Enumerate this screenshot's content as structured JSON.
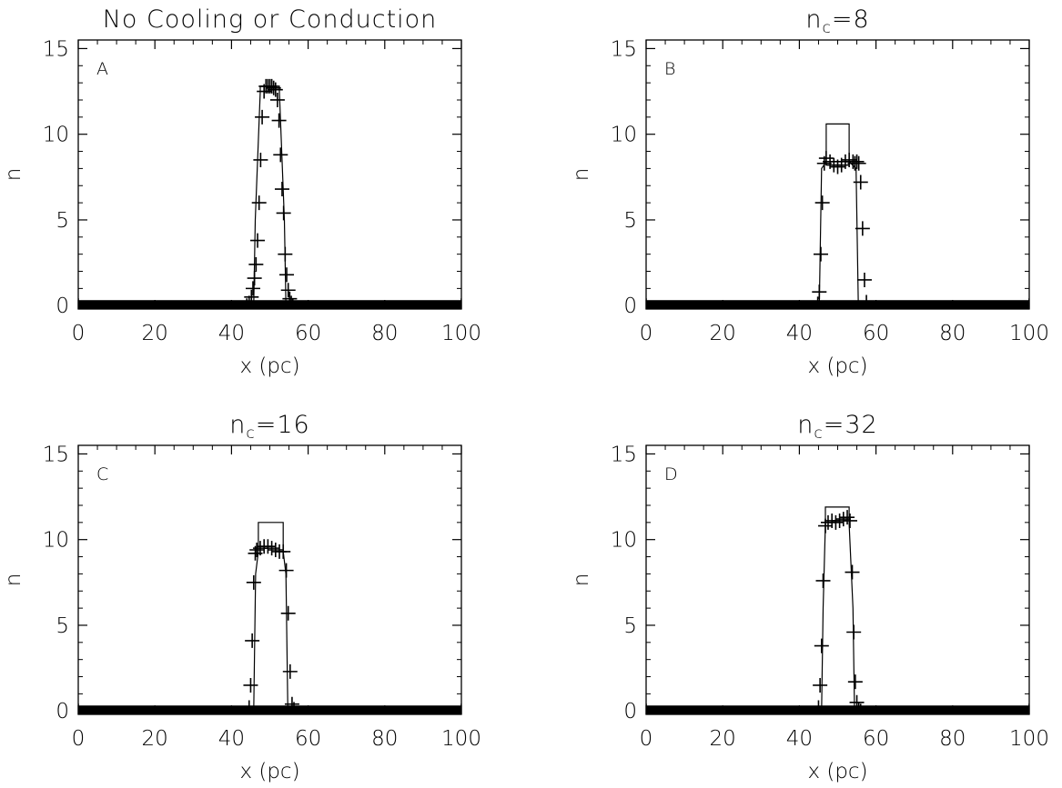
{
  "chart_data": [
    {
      "type": "line",
      "panel": "A",
      "title": "No Cooling or Conduction",
      "title_sub": "",
      "xlabel": "x (pc)",
      "ylabel": "n",
      "xlim": [
        0,
        100
      ],
      "ylim": [
        -0.2,
        15.5
      ],
      "xticks": [
        0,
        20,
        40,
        60,
        80,
        100
      ],
      "yticks": [
        0,
        5,
        10,
        15
      ],
      "grid": false,
      "series": [
        {
          "kind": "line",
          "x": [
            0,
            45.8,
            46.2,
            47.5,
            47.5,
            52.5,
            52.5,
            53.8,
            54.2,
            100
          ],
          "y": [
            0,
            0,
            5.0,
            12.5,
            12.8,
            12.8,
            12.5,
            5.0,
            0,
            0
          ]
        },
        {
          "kind": "markers",
          "x": [
            0,
            44,
            44.6,
            45.2,
            45.6,
            46.0,
            46.4,
            46.8,
            47.2,
            47.6,
            48.0,
            48.5,
            49.0,
            49.5,
            50.0,
            50.5,
            51.0,
            51.5,
            52.0,
            52.4,
            52.8,
            53.2,
            53.6,
            54.0,
            54.4,
            54.8,
            55.2,
            55.6,
            56.0,
            100
          ],
          "y": [
            0,
            0,
            0.15,
            0.5,
            1.0,
            1.6,
            2.4,
            3.8,
            6.0,
            8.5,
            11.0,
            12.5,
            12.8,
            12.8,
            12.8,
            12.8,
            12.7,
            12.6,
            12.0,
            10.8,
            8.8,
            6.8,
            5.4,
            3.0,
            1.8,
            0.9,
            0.4,
            0.15,
            0,
            0
          ]
        }
      ]
    },
    {
      "type": "line",
      "panel": "B",
      "title": "n",
      "title_sub": "c",
      "title_tail": "=8",
      "xlabel": "x (pc)",
      "ylabel": "n",
      "xlim": [
        0,
        100
      ],
      "ylim": [
        -0.2,
        15.5
      ],
      "xticks": [
        0,
        20,
        40,
        60,
        80,
        100
      ],
      "yticks": [
        0,
        5,
        10,
        15
      ],
      "grid": false,
      "series": [
        {
          "kind": "line",
          "x": [
            0,
            45.2,
            45.8,
            47.0,
            47.0,
            53.0,
            53.0,
            54.8,
            55.4,
            100
          ],
          "y": [
            0,
            0,
            8.0,
            8.4,
            10.6,
            10.6,
            8.4,
            8.0,
            0,
            0
          ]
        },
        {
          "kind": "markers",
          "x": [
            0,
            44.8,
            45.2,
            45.6,
            46.0,
            46.5,
            47.0,
            48.0,
            49.0,
            50.0,
            51.0,
            52.0,
            53.0,
            54.0,
            54.5,
            55.0,
            55.5,
            56.0,
            56.5,
            57.0,
            57.5,
            100
          ],
          "y": [
            0,
            0.1,
            0.8,
            3.0,
            6.0,
            8.3,
            8.6,
            8.4,
            8.2,
            8.1,
            8.2,
            8.4,
            8.5,
            8.4,
            8.3,
            8.4,
            8.3,
            7.2,
            4.5,
            1.5,
            0.2,
            0
          ]
        }
      ]
    },
    {
      "type": "line",
      "panel": "C",
      "title": "n",
      "title_sub": "c",
      "title_tail": "=16",
      "xlabel": "x (pc)",
      "ylabel": "n",
      "xlim": [
        0,
        100
      ],
      "ylim": [
        -0.2,
        15.5
      ],
      "xticks": [
        0,
        20,
        40,
        60,
        80,
        100
      ],
      "yticks": [
        0,
        5,
        10,
        15
      ],
      "grid": false,
      "series": [
        {
          "kind": "line",
          "x": [
            0,
            45.8,
            46.3,
            47.0,
            47.0,
            53.5,
            53.5,
            54.2,
            54.7,
            100
          ],
          "y": [
            0,
            0,
            8.0,
            9.3,
            11.0,
            11.0,
            9.3,
            8.0,
            0,
            0
          ]
        },
        {
          "kind": "markers",
          "x": [
            0,
            44.6,
            45.0,
            45.4,
            45.8,
            46.2,
            46.6,
            47.5,
            48.5,
            49.5,
            50.5,
            51.5,
            52.5,
            53.5,
            54.3,
            54.8,
            55.3,
            55.8,
            56.3,
            100
          ],
          "y": [
            0,
            0.2,
            1.5,
            4.1,
            7.5,
            9.2,
            9.4,
            9.5,
            9.6,
            9.6,
            9.5,
            9.4,
            9.3,
            9.3,
            8.2,
            5.7,
            2.3,
            0.4,
            0.1,
            0
          ]
        }
      ]
    },
    {
      "type": "line",
      "panel": "D",
      "title": "n",
      "title_sub": "c",
      "title_tail": "=32",
      "xlabel": "x (pc)",
      "ylabel": "n",
      "xlim": [
        0,
        100
      ],
      "ylim": [
        -0.2,
        15.5
      ],
      "xticks": [
        0,
        20,
        40,
        60,
        80,
        100
      ],
      "yticks": [
        0,
        5,
        10,
        15
      ],
      "grid": false,
      "series": [
        {
          "kind": "line",
          "x": [
            0,
            45.8,
            46.2,
            46.8,
            46.8,
            53.0,
            53.0,
            54.0,
            54.4,
            100
          ],
          "y": [
            0,
            0,
            6.0,
            10.9,
            11.9,
            11.9,
            10.9,
            6.0,
            0,
            0
          ]
        },
        {
          "kind": "markers",
          "x": [
            0,
            45.0,
            45.4,
            45.8,
            46.2,
            46.8,
            47.5,
            48.5,
            49.5,
            50.5,
            51.5,
            52.5,
            53.2,
            53.8,
            54.2,
            54.6,
            55.0,
            55.5,
            56.0,
            100
          ],
          "y": [
            0,
            0.2,
            1.5,
            3.8,
            7.6,
            10.8,
            11.0,
            11.1,
            11.0,
            11.1,
            11.2,
            11.3,
            11.1,
            8.1,
            4.6,
            1.7,
            0.5,
            0.1,
            0,
            0
          ]
        }
      ]
    }
  ]
}
